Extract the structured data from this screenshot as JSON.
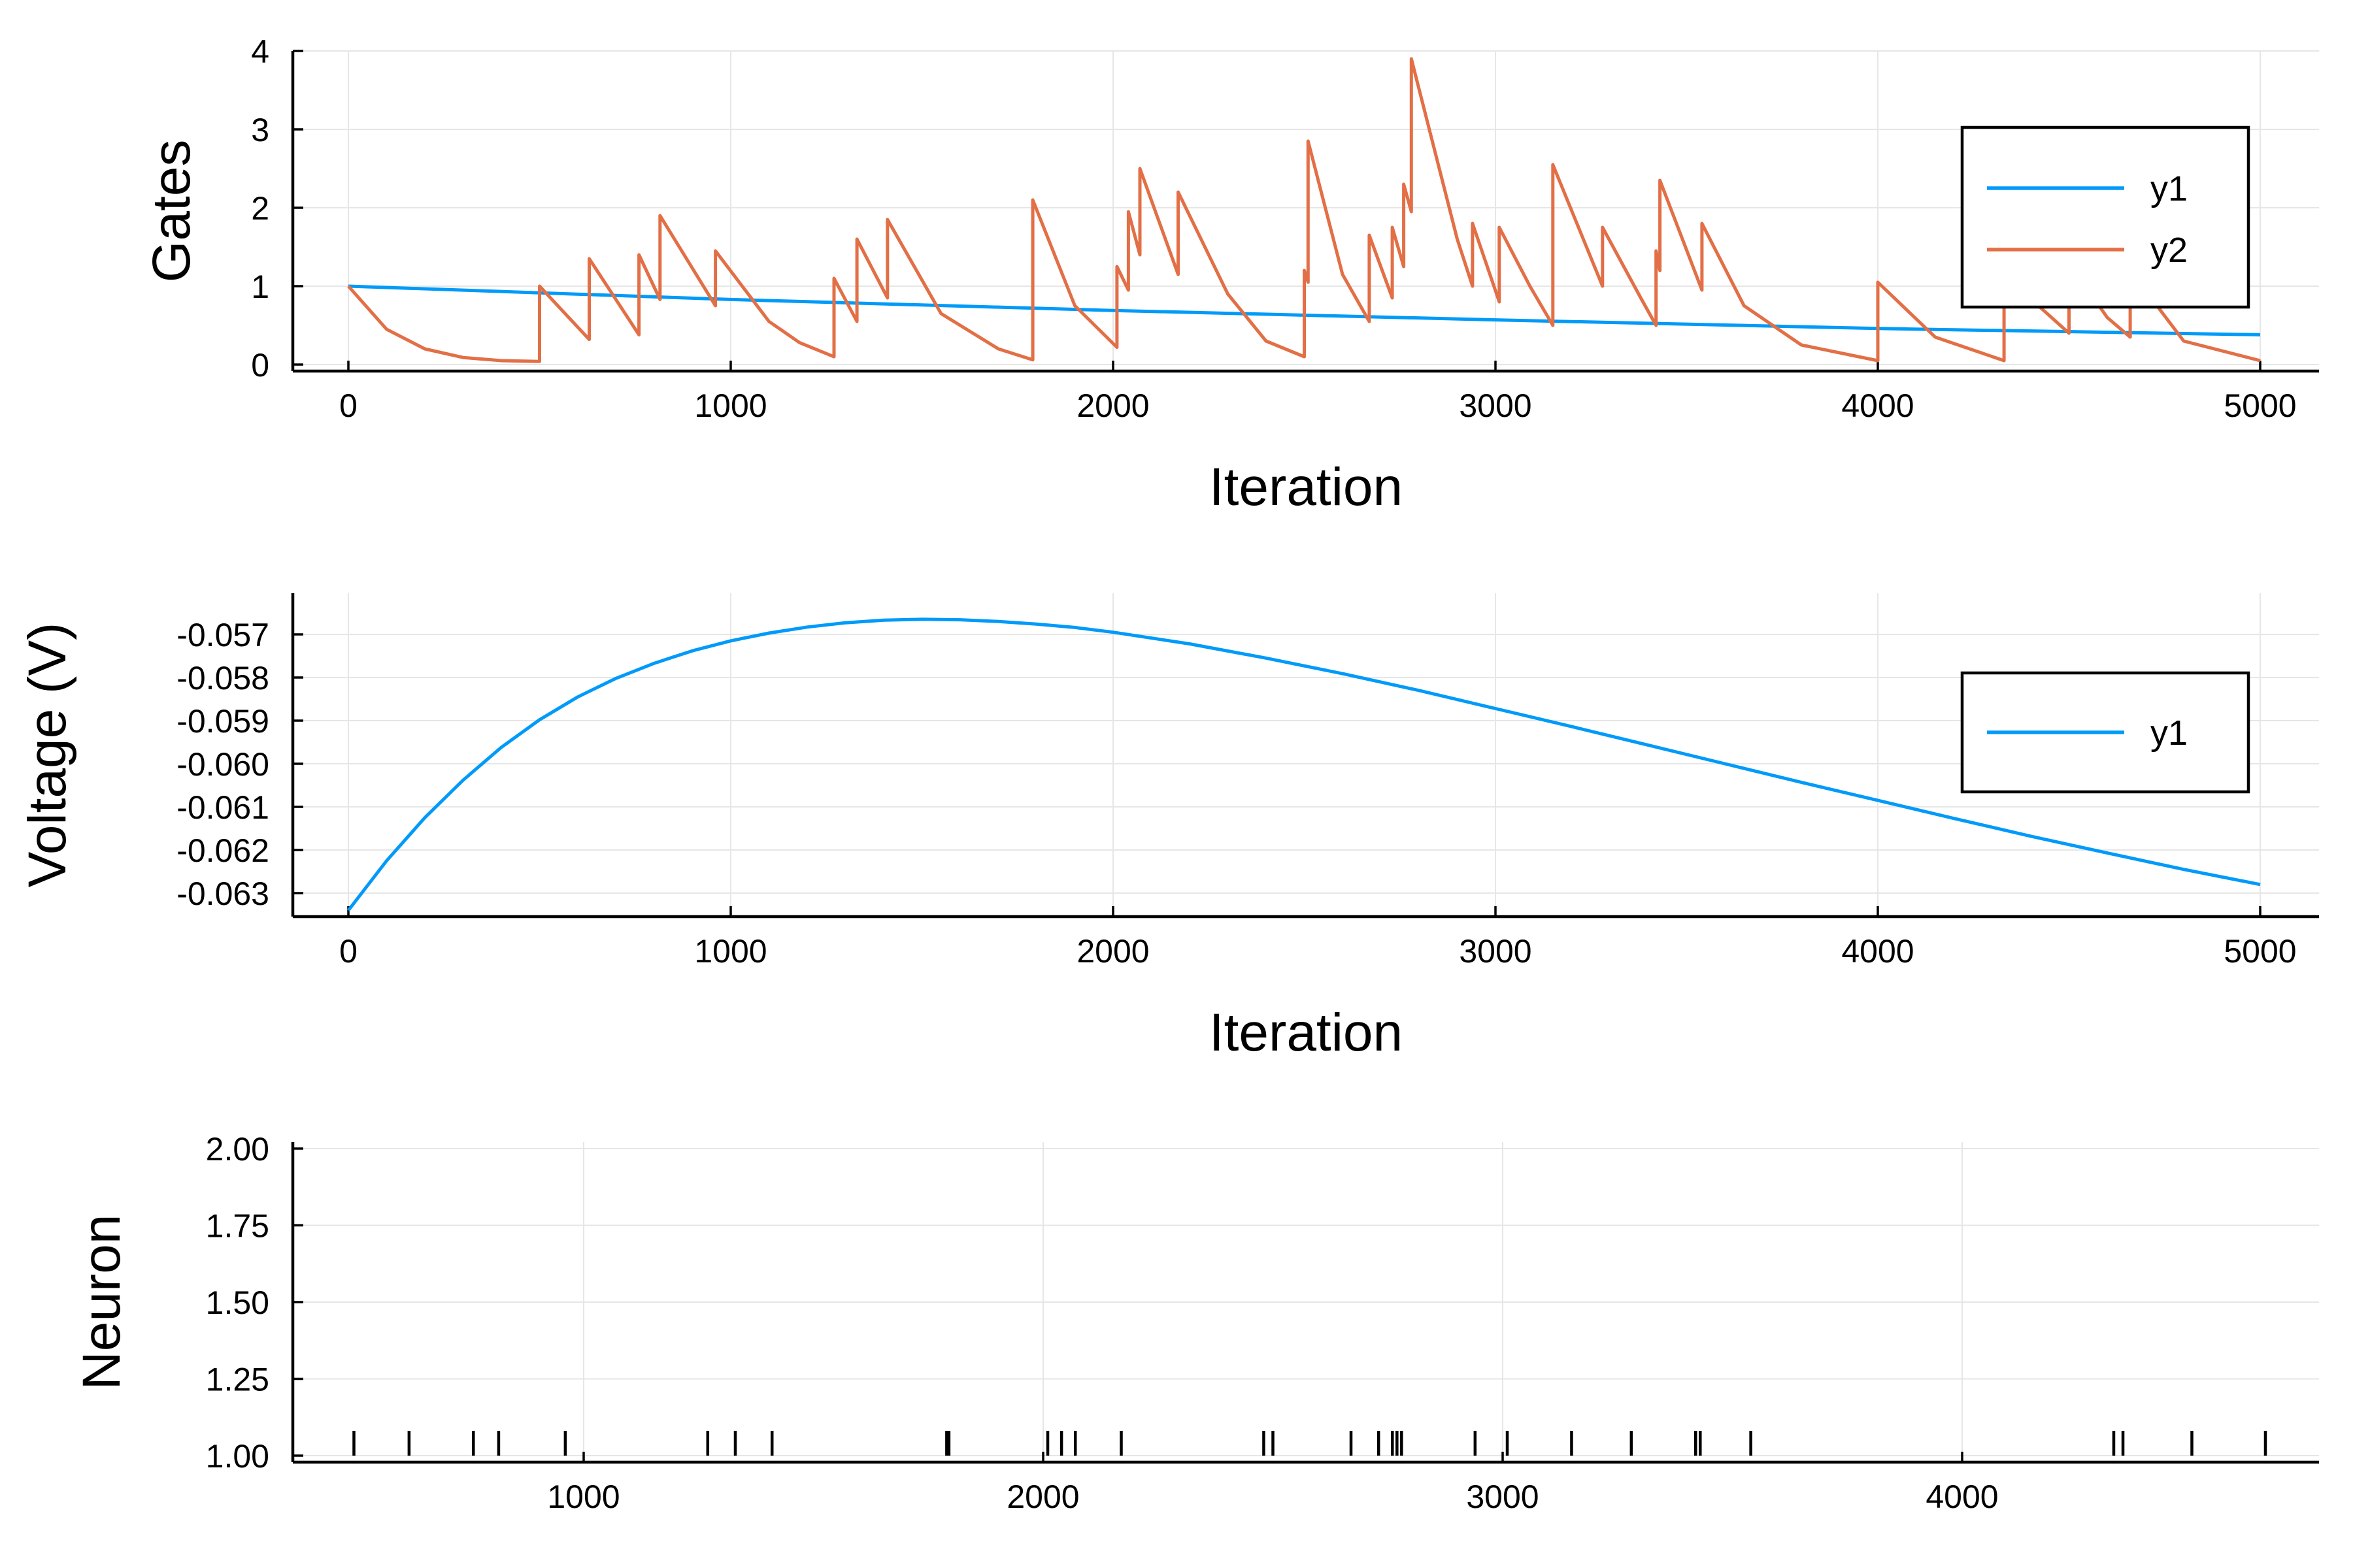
{
  "colors": {
    "y1": "#009af9",
    "y2": "#e26f46"
  },
  "chart_data": [
    {
      "type": "line",
      "xlabel": "Iteration",
      "ylabel": "Gates",
      "xlim": [
        0,
        5000
      ],
      "ylim": [
        0,
        4
      ],
      "xticks": [
        0,
        1000,
        2000,
        3000,
        4000,
        5000
      ],
      "yticks": [
        0,
        1,
        2,
        3,
        4
      ],
      "grid": true,
      "legend_position": "right",
      "series": [
        {
          "name": "y1",
          "color": "#009af9",
          "points": [
            [
              0,
              1.0
            ],
            [
              1000,
              0.83
            ],
            [
              2000,
              0.69
            ],
            [
              3000,
              0.57
            ],
            [
              4000,
              0.46
            ],
            [
              5000,
              0.38
            ]
          ]
        },
        {
          "name": "y2",
          "color": "#e26f46",
          "points": [
            [
              0,
              1.0
            ],
            [
              100,
              0.45
            ],
            [
              200,
              0.2
            ],
            [
              300,
              0.09
            ],
            [
              400,
              0.05
            ],
            [
              500,
              0.04
            ],
            [
              500,
              1.0
            ],
            [
              630,
              0.32
            ],
            [
              630,
              1.35
            ],
            [
              760,
              0.38
            ],
            [
              760,
              1.4
            ],
            [
              815,
              0.83
            ],
            [
              815,
              1.9
            ],
            [
              960,
              0.75
            ],
            [
              960,
              1.45
            ],
            [
              1100,
              0.55
            ],
            [
              1180,
              0.28
            ],
            [
              1270,
              0.1
            ],
            [
              1270,
              1.1
            ],
            [
              1330,
              0.55
            ],
            [
              1330,
              1.6
            ],
            [
              1410,
              0.85
            ],
            [
              1410,
              1.85
            ],
            [
              1550,
              0.65
            ],
            [
              1700,
              0.2
            ],
            [
              1790,
              0.06
            ],
            [
              1790,
              2.1
            ],
            [
              1900,
              0.75
            ],
            [
              2010,
              0.22
            ],
            [
              2010,
              1.25
            ],
            [
              2040,
              0.95
            ],
            [
              2040,
              1.95
            ],
            [
              2070,
              1.4
            ],
            [
              2070,
              2.5
            ],
            [
              2170,
              1.15
            ],
            [
              2170,
              2.2
            ],
            [
              2300,
              0.9
            ],
            [
              2400,
              0.3
            ],
            [
              2500,
              0.1
            ],
            [
              2500,
              1.2
            ],
            [
              2510,
              1.05
            ],
            [
              2510,
              2.85
            ],
            [
              2600,
              1.15
            ],
            [
              2670,
              0.55
            ],
            [
              2670,
              1.65
            ],
            [
              2730,
              0.85
            ],
            [
              2730,
              1.75
            ],
            [
              2760,
              1.25
            ],
            [
              2760,
              2.3
            ],
            [
              2780,
              1.95
            ],
            [
              2780,
              3.9
            ],
            [
              2900,
              1.6
            ],
            [
              2940,
              1.0
            ],
            [
              2940,
              1.8
            ],
            [
              3010,
              0.8
            ],
            [
              3010,
              1.75
            ],
            [
              3090,
              1.0
            ],
            [
              3150,
              0.5
            ],
            [
              3150,
              2.55
            ],
            [
              3280,
              1.0
            ],
            [
              3280,
              1.75
            ],
            [
              3380,
              0.85
            ],
            [
              3420,
              0.5
            ],
            [
              3420,
              1.45
            ],
            [
              3430,
              1.2
            ],
            [
              3430,
              2.35
            ],
            [
              3540,
              0.95
            ],
            [
              3540,
              1.8
            ],
            [
              3650,
              0.75
            ],
            [
              3800,
              0.25
            ],
            [
              4000,
              0.05
            ],
            [
              4000,
              1.05
            ],
            [
              4150,
              0.35
            ],
            [
              4330,
              0.05
            ],
            [
              4330,
              1.4
            ],
            [
              4420,
              0.75
            ],
            [
              4500,
              0.4
            ],
            [
              4500,
              1.3
            ],
            [
              4600,
              0.6
            ],
            [
              4660,
              0.35
            ],
            [
              4660,
              1.2
            ],
            [
              4800,
              0.3
            ],
            [
              5000,
              0.05
            ]
          ]
        }
      ]
    },
    {
      "type": "line",
      "xlabel": "Iteration",
      "ylabel": "Voltage (V)",
      "xlim": [
        0,
        5000
      ],
      "ylim": [
        -0.0635,
        -0.0564
      ],
      "xticks": [
        0,
        1000,
        2000,
        3000,
        4000,
        5000
      ],
      "yticks": [
        -0.057,
        -0.058,
        -0.059,
        -0.06,
        -0.061,
        -0.062,
        -0.063
      ],
      "ytick_labels": [
        "-0.057",
        "-0.058",
        "-0.059",
        "-0.060",
        "-0.061",
        "-0.062",
        "-0.063"
      ],
      "grid": true,
      "legend_position": "right",
      "series": [
        {
          "name": "y1",
          "color": "#009af9",
          "points": [
            [
              0,
              -0.0634
            ],
            [
              100,
              -0.06225
            ],
            [
              200,
              -0.06125
            ],
            [
              300,
              -0.06038
            ],
            [
              400,
              -0.05962
            ],
            [
              500,
              -0.05898
            ],
            [
              600,
              -0.05845
            ],
            [
              700,
              -0.05802
            ],
            [
              800,
              -0.05767
            ],
            [
              900,
              -0.05738
            ],
            [
              1000,
              -0.05715
            ],
            [
              1100,
              -0.05697
            ],
            [
              1200,
              -0.05683
            ],
            [
              1300,
              -0.05673
            ],
            [
              1400,
              -0.05667
            ],
            [
              1500,
              -0.05665
            ],
            [
              1600,
              -0.05666
            ],
            [
              1700,
              -0.0567
            ],
            [
              1800,
              -0.05676
            ],
            [
              1900,
              -0.05684
            ],
            [
              2000,
              -0.05695
            ],
            [
              2200,
              -0.05722
            ],
            [
              2400,
              -0.05755
            ],
            [
              2600,
              -0.05791
            ],
            [
              2800,
              -0.0583
            ],
            [
              3000,
              -0.05872
            ],
            [
              3200,
              -0.05914
            ],
            [
              3400,
              -0.05957
            ],
            [
              3600,
              -0.06
            ],
            [
              3800,
              -0.06043
            ],
            [
              4000,
              -0.06085
            ],
            [
              4200,
              -0.06127
            ],
            [
              4400,
              -0.06168
            ],
            [
              4600,
              -0.06207
            ],
            [
              4800,
              -0.06245
            ],
            [
              5000,
              -0.0628
            ]
          ]
        }
      ]
    },
    {
      "type": "scatter",
      "marker": "vertical-line",
      "xlabel": "",
      "ylabel": "Neuron",
      "xlim": [
        430,
        4780
      ],
      "ylim": [
        0.98,
        2.01
      ],
      "xticks": [
        1000,
        2000,
        3000,
        4000
      ],
      "yticks": [
        1.0,
        1.25,
        1.5,
        1.75,
        2.0
      ],
      "ytick_labels": [
        "1.00",
        "1.25",
        "1.50",
        "1.75",
        "2.00"
      ],
      "grid": true,
      "series": [
        {
          "name": "",
          "color": "#000000",
          "x": [
            500,
            620,
            760,
            815,
            960,
            1270,
            1330,
            1410,
            1790,
            1795,
            2010,
            2040,
            2070,
            2170,
            2480,
            2500,
            2670,
            2730,
            2760,
            2770,
            2780,
            2940,
            3010,
            3150,
            3280,
            3420,
            3430,
            3540,
            4330,
            4350,
            4500,
            4660
          ],
          "y": [
            1,
            1,
            1,
            1,
            1,
            1,
            1,
            1,
            1,
            1,
            1,
            1,
            1,
            1,
            1,
            1,
            1,
            1,
            1,
            1,
            1,
            1,
            1,
            1,
            1,
            1,
            1,
            1,
            1,
            1,
            1,
            1
          ]
        }
      ]
    }
  ]
}
